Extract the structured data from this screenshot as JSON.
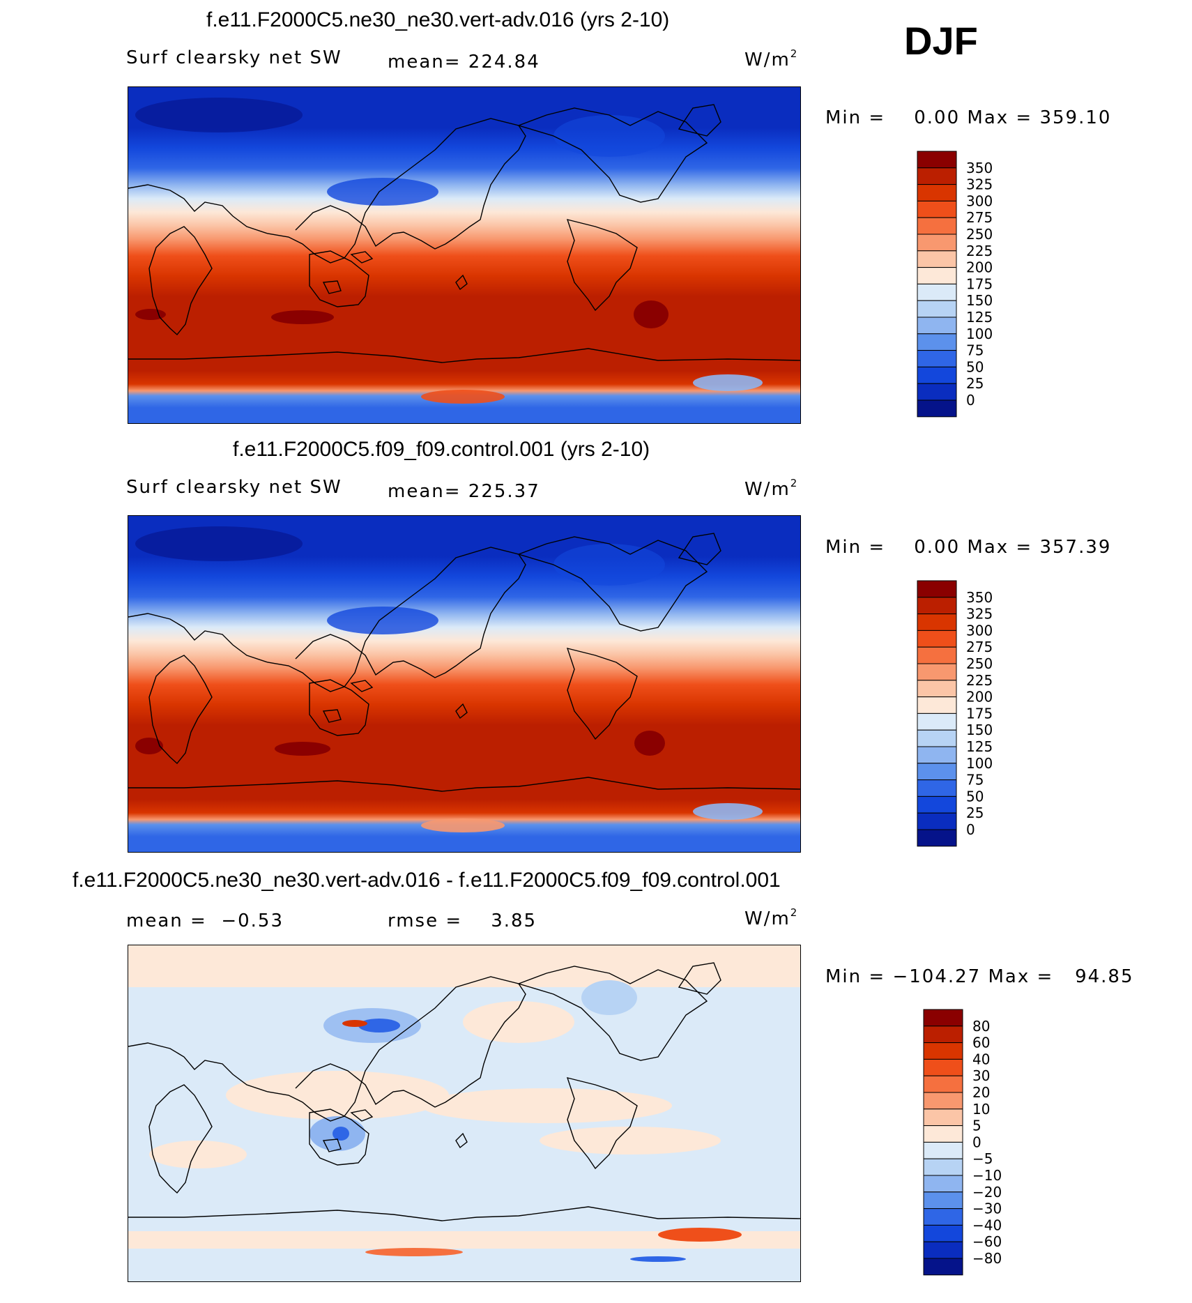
{
  "season": "DJF",
  "units_prefix": "W/m",
  "units_exponent": "2",
  "panels": [
    {
      "title": "f.e11.F2000C5.ne30_ne30.vert-adv.016 (yrs 2-10)",
      "variable": "Surf clearsky net SW",
      "stat_left": "",
      "stat_mid": "mean= 224.84",
      "minmax": "Min =    0.00 Max = 359.10",
      "colorbar": {
        "levels": [
          "350",
          "325",
          "300",
          "275",
          "250",
          "225",
          "200",
          "175",
          "150",
          "125",
          "100",
          "75",
          "50",
          "25",
          "0"
        ],
        "colors": [
          "#8a0000",
          "#bb1f00",
          "#d93500",
          "#ef4f1a",
          "#f5703f",
          "#f8986f",
          "#fbc5a7",
          "#fde8d8",
          "#dbeaf8",
          "#b7d3f4",
          "#8fb5f0",
          "#5c91ec",
          "#2f66e6",
          "#1347dc",
          "#0a2dbf",
          "#05138a"
        ]
      }
    },
    {
      "title": "f.e11.F2000C5.f09_f09.control.001 (yrs 2-10)",
      "variable": "Surf clearsky net SW",
      "stat_left": "",
      "stat_mid": "mean= 225.37",
      "minmax": "Min =    0.00 Max = 357.39",
      "colorbar": {
        "levels": [
          "350",
          "325",
          "300",
          "275",
          "250",
          "225",
          "200",
          "175",
          "150",
          "125",
          "100",
          "75",
          "50",
          "25",
          "0"
        ],
        "colors": [
          "#8a0000",
          "#bb1f00",
          "#d93500",
          "#ef4f1a",
          "#f5703f",
          "#f8986f",
          "#fbc5a7",
          "#fde8d8",
          "#dbeaf8",
          "#b7d3f4",
          "#8fb5f0",
          "#5c91ec",
          "#2f66e6",
          "#1347dc",
          "#0a2dbf",
          "#05138a"
        ]
      }
    },
    {
      "title": "f.e11.F2000C5.ne30_ne30.vert-adv.016 - f.e11.F2000C5.f09_f09.control.001",
      "variable": "",
      "stat_left": "mean =  −0.53",
      "stat_mid": "rmse =    3.85",
      "minmax": "Min = −104.27 Max =   94.85",
      "colorbar": {
        "levels": [
          "80",
          "60",
          "40",
          "30",
          "20",
          "10",
          "5",
          "0",
          "−5",
          "−10",
          "−20",
          "−30",
          "−40",
          "−60",
          "−80"
        ],
        "colors": [
          "#8a0000",
          "#bb1f00",
          "#d93500",
          "#ef4f1a",
          "#f5703f",
          "#f8986f",
          "#fbc5a7",
          "#fde8d8",
          "#dbeaf8",
          "#b7d3f4",
          "#8fb5f0",
          "#5c91ec",
          "#2f66e6",
          "#1347dc",
          "#0a2dbf",
          "#05138a"
        ]
      }
    }
  ],
  "chart_data": [
    {
      "type": "heatmap",
      "title": "f.e11.F2000C5.ne30_ne30.vert-adv.016 (yrs 2-10)",
      "variable": "Surf clearsky net SW",
      "units": "W/m2",
      "mean": 224.84,
      "min": 0.0,
      "max": 359.1,
      "x_range": [
        0,
        360
      ],
      "y_range": [
        -90,
        90
      ],
      "zonal_profile": [
        [
          90,
          5
        ],
        [
          75,
          25
        ],
        [
          60,
          70
        ],
        [
          50,
          120
        ],
        [
          40,
          175
        ],
        [
          30,
          225
        ],
        [
          20,
          265
        ],
        [
          10,
          300
        ],
        [
          0,
          320
        ],
        [
          -10,
          335
        ],
        [
          -20,
          345
        ],
        [
          -30,
          350
        ],
        [
          -40,
          340
        ],
        [
          -50,
          300
        ],
        [
          -60,
          150
        ],
        [
          -70,
          60
        ],
        [
          -90,
          50
        ]
      ],
      "contour_levels": [
        0,
        25,
        50,
        75,
        100,
        125,
        150,
        175,
        200,
        225,
        250,
        275,
        300,
        325,
        350
      ]
    },
    {
      "type": "heatmap",
      "title": "f.e11.F2000C5.f09_f09.control.001 (yrs 2-10)",
      "variable": "Surf clearsky net SW",
      "units": "W/m2",
      "mean": 225.37,
      "min": 0.0,
      "max": 357.39,
      "x_range": [
        0,
        360
      ],
      "y_range": [
        -90,
        90
      ],
      "zonal_profile": [
        [
          90,
          5
        ],
        [
          75,
          25
        ],
        [
          60,
          70
        ],
        [
          50,
          120
        ],
        [
          40,
          175
        ],
        [
          30,
          225
        ],
        [
          20,
          265
        ],
        [
          10,
          300
        ],
        [
          0,
          322
        ],
        [
          -10,
          335
        ],
        [
          -20,
          345
        ],
        [
          -30,
          350
        ],
        [
          -40,
          340
        ],
        [
          -50,
          305
        ],
        [
          -60,
          150
        ],
        [
          -70,
          60
        ],
        [
          -90,
          50
        ]
      ],
      "contour_levels": [
        0,
        25,
        50,
        75,
        100,
        125,
        150,
        175,
        200,
        225,
        250,
        275,
        300,
        325,
        350
      ]
    },
    {
      "type": "heatmap",
      "title": "f.e11.F2000C5.ne30_ne30.vert-adv.016 - f.e11.F2000C5.f09_f09.control.001",
      "units": "W/m2",
      "mean": -0.53,
      "rmse": 3.85,
      "min": -104.27,
      "max": 94.85,
      "x_range": [
        0,
        360
      ],
      "y_range": [
        -90,
        90
      ],
      "contour_levels": [
        -80,
        -60,
        -40,
        -30,
        -20,
        -10,
        -5,
        0,
        5,
        10,
        20,
        30,
        40,
        60,
        80
      ]
    }
  ]
}
